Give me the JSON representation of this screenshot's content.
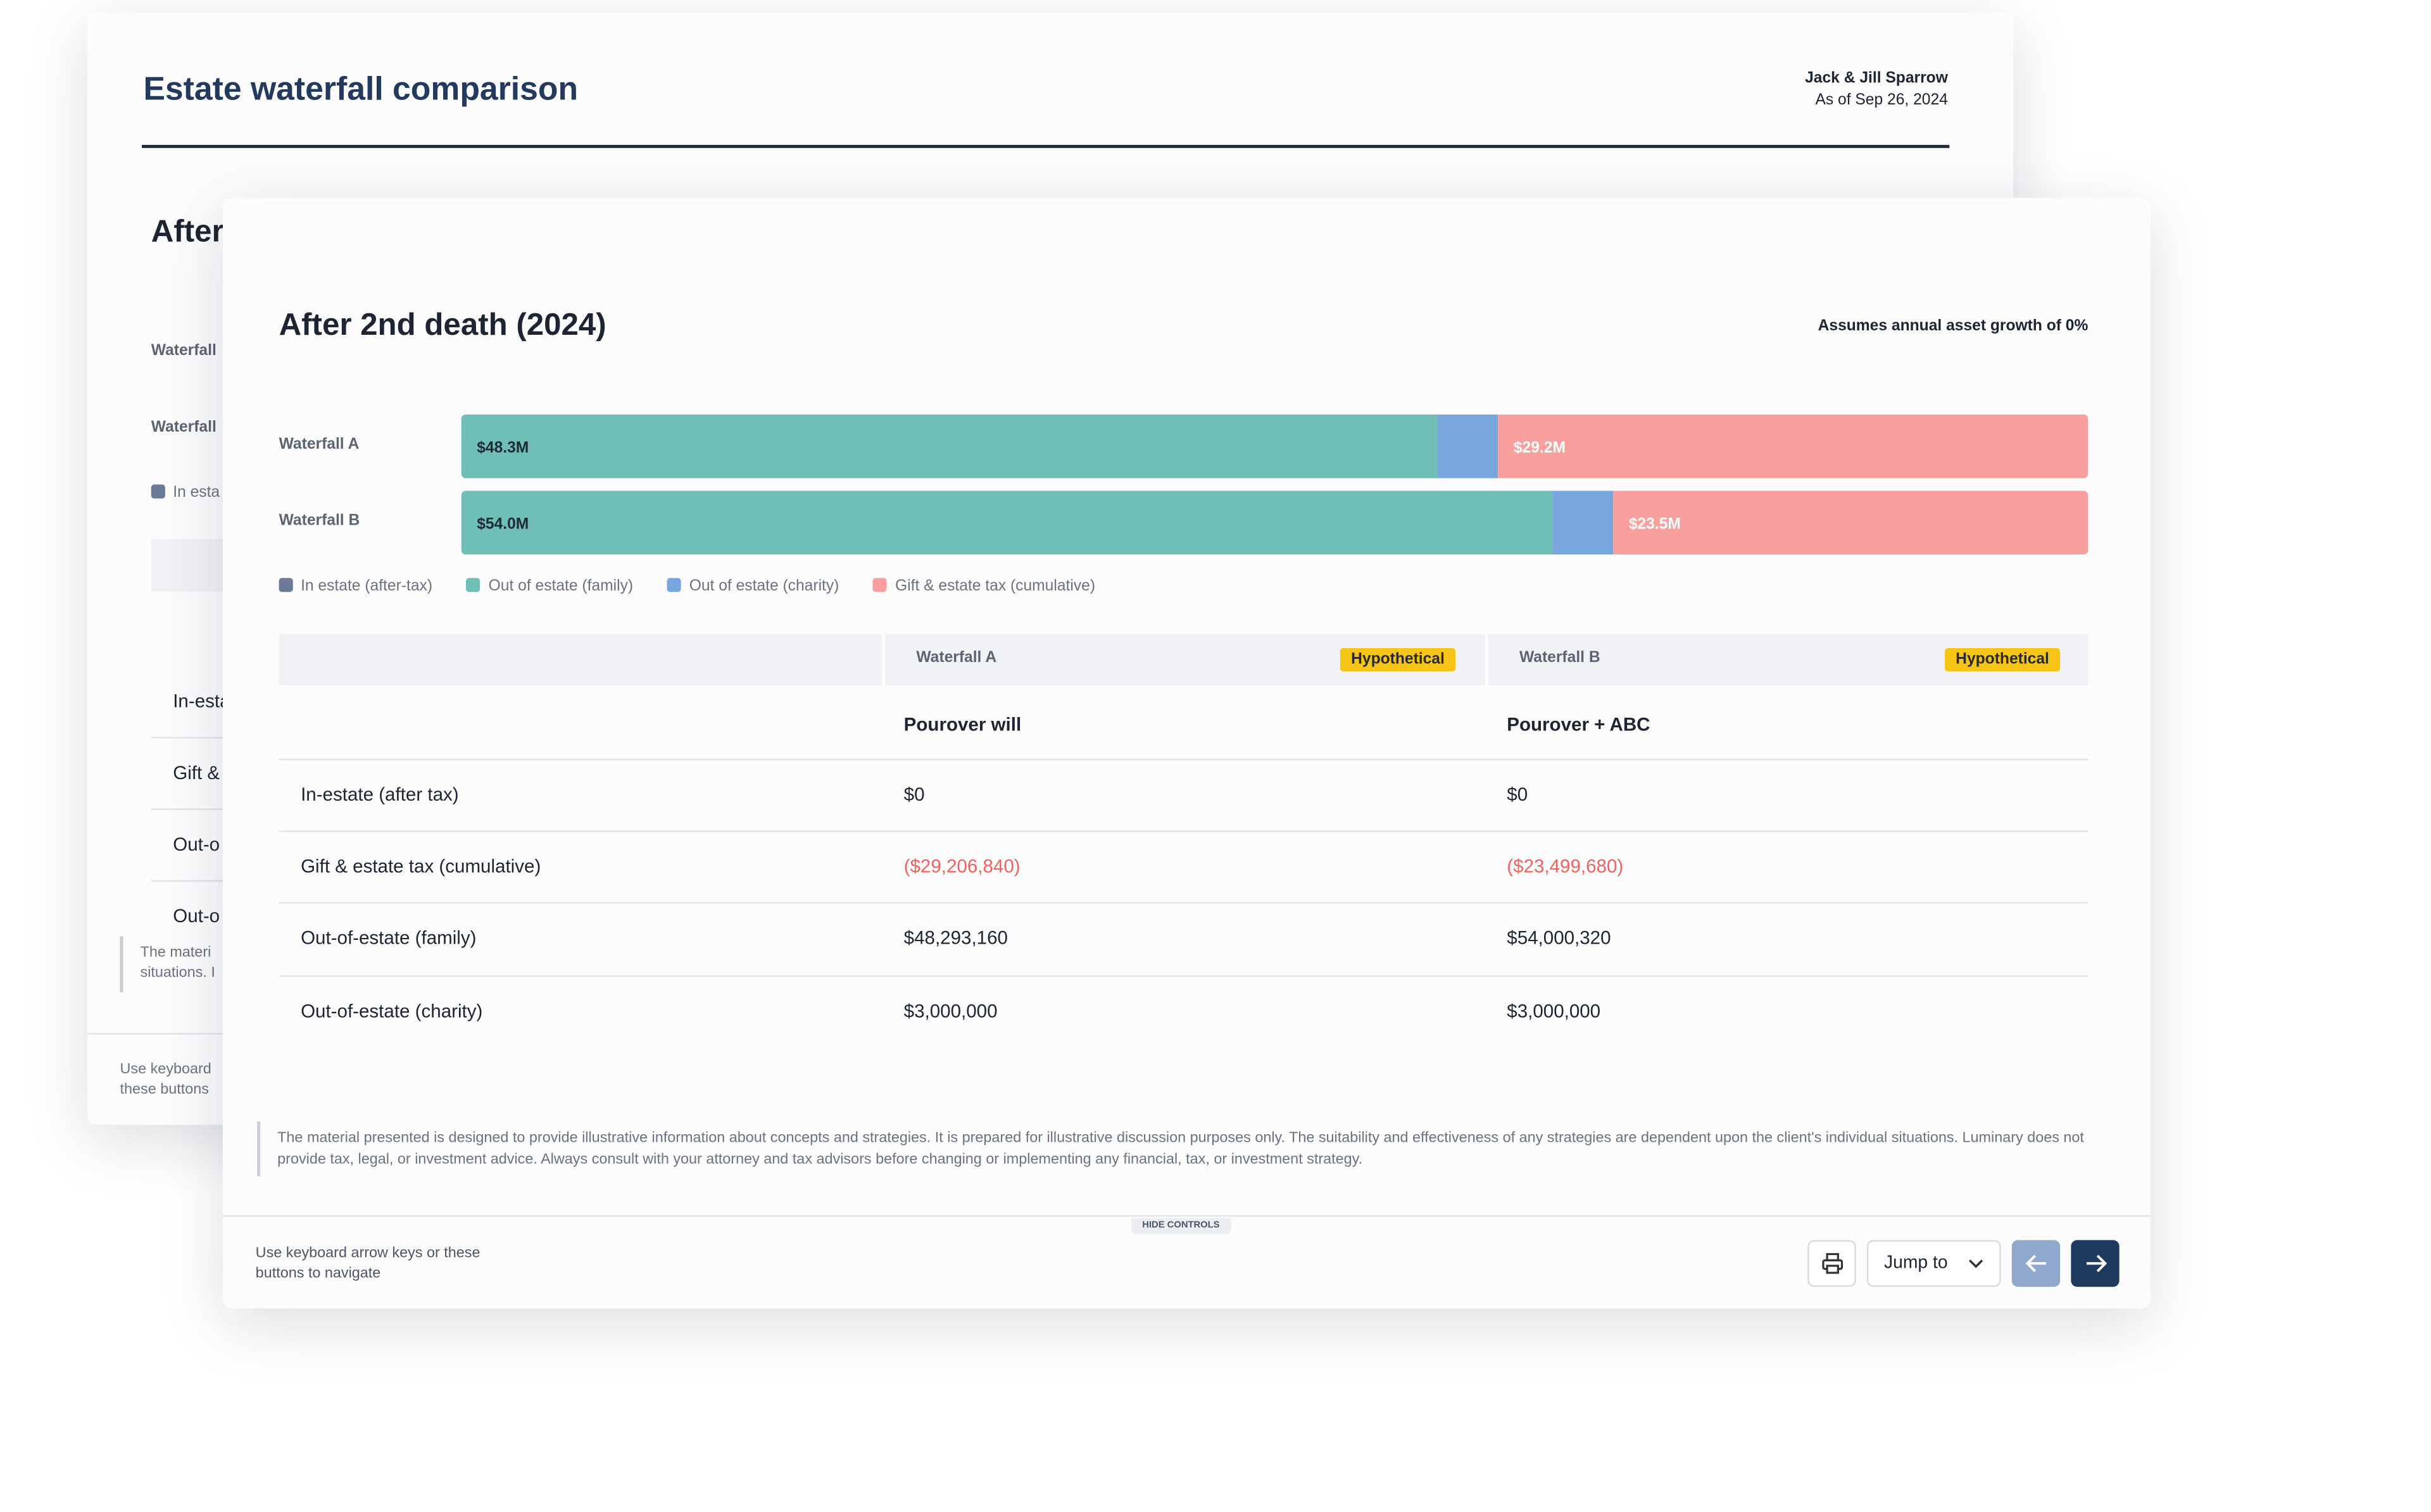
{
  "back_page": {
    "title": "Estate waterfall comparison",
    "client": "Jack & Jill Sparrow",
    "as_of": "As of Sep 26, 2024",
    "section_fragment": "After",
    "row_fragments": [
      "Waterfall",
      "Waterfall"
    ],
    "legend_fragment": "In esta",
    "table_fragments": [
      "In-esta",
      "Gift &",
      "Out-o",
      "Out-o"
    ],
    "disclaimer_fragments": [
      "The materi",
      "situations. I"
    ],
    "nav_fragments": [
      "Use keyboard",
      "these buttons"
    ]
  },
  "chart_data": {
    "type": "bar",
    "orientation": "horizontal",
    "stacked": true,
    "title": "After 2nd death (2024)",
    "subtitle": "Assumes annual asset growth of 0%",
    "categories": [
      "Waterfall A",
      "Waterfall B"
    ],
    "series": [
      {
        "name": "In estate (after-tax)",
        "color": "#6b7a99",
        "values": [
          0,
          0
        ]
      },
      {
        "name": "Out of estate (family)",
        "color": "#6fbfb7",
        "values": [
          48.3,
          54.0
        ],
        "value_labels": [
          "$48.3M",
          "$54.0M"
        ],
        "label_color": "#1d2b36"
      },
      {
        "name": "Out of estate (charity)",
        "color": "#7aa6e0",
        "values": [
          3.0,
          3.0
        ]
      },
      {
        "name": "Gift & estate tax (cumulative)",
        "color": "#f9a09f",
        "values": [
          29.2,
          23.5
        ],
        "value_labels": [
          "$29.2M",
          "$23.5M"
        ],
        "label_color": "#ffffff"
      }
    ]
  },
  "table": {
    "columns": [
      "Waterfall A",
      "Waterfall B"
    ],
    "badges": [
      "Hypothetical",
      "Hypothetical"
    ],
    "plans": [
      "Pourover will",
      "Pourover + ABC"
    ],
    "rows": [
      [
        "In-estate (after tax)",
        "$0",
        "$0"
      ],
      [
        "Gift & estate tax (cumulative)",
        "($29,206,840)",
        "($23,499,680)"
      ],
      [
        "Out-of-estate (family)",
        "$48,293,160",
        "$54,000,320"
      ],
      [
        "Out-of-estate (charity)",
        "$3,000,000",
        "$3,000,000"
      ]
    ]
  },
  "disclaimer": "The material presented is designed to provide illustrative information about concepts and strategies. It is prepared for illustrative discussion purposes only. The suitability and effectiveness of any strategies are dependent upon the client's individual situations. Luminary does not provide tax, legal, or investment advice. Always consult with your attorney and tax advisors before changing or implementing any financial, tax, or investment strategy.",
  "footer": {
    "hint": "Use keyboard arrow keys or these buttons to navigate",
    "toggle": "HIDE CONTROLS",
    "jump": "Jump to"
  }
}
